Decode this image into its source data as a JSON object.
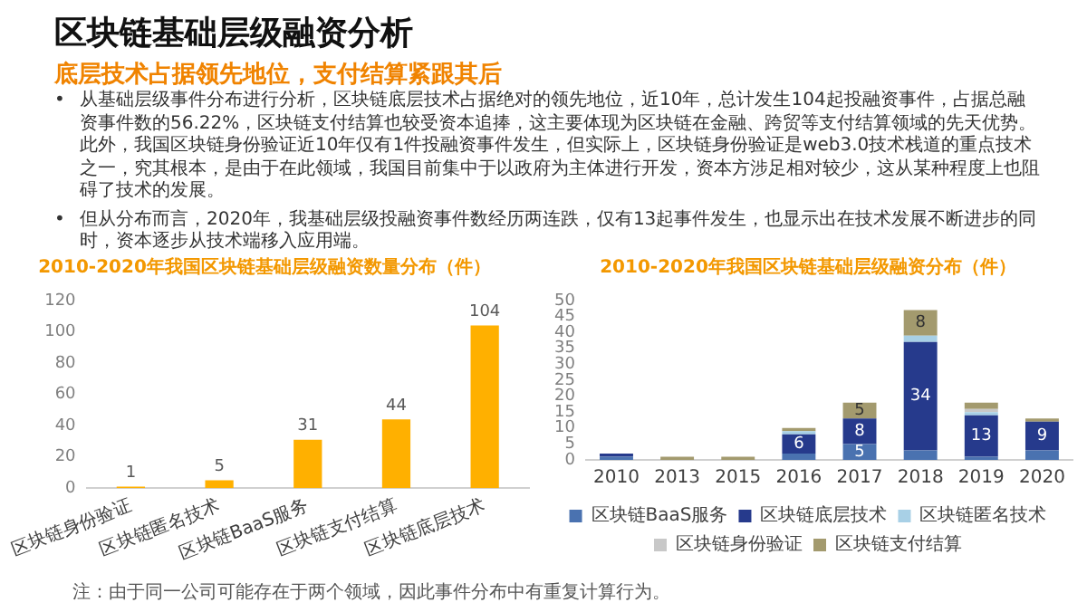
{
  "chart_data": [
    {
      "type": "other",
      "title": "区块链基础层级融资分析",
      "subtitle": "底层技术占据领先地位，支付结算紧跟其后",
      "annotations": [
        "• 从基础层级事件分布进行分析，区块链底层技术占据绝对的领先地位，近10年，总计发生104起投融资事件，占据总融资事件数的56.22%，区块链支付结算也较受资本追捧，这主要体现为区块链在金融、跨贸等支付结算领域的先天优势。此外，我国区块链身份验证近10年仅有1件投融资事件发生，但实际上，区块链身份验证是web3.0技术栈道的重点技术之一，究其根本，是由于在此领域，我国目前集中于以政府为主体进行开发，资本方涉足相对较少，这从某种程度上也阻碍了技术的发展。",
        "• 但从分布而言，2020年，我基础层级投融资事件数经历两连跌，仅有13起事件发生，也显示出在技术发展不断进步的同时，资本逐步从技术端移入应用端。"
      ]
    },
    {
      "type": "bar",
      "title": "2010-2020年我国区块链基础层级融资数量分布（件）",
      "categories": [
        "区块链身份验证",
        "区块链匿名技术",
        "区块链BaaS服务",
        "区块链支付结算",
        "区块链底层技术"
      ],
      "values": [
        1,
        5,
        31,
        44,
        104
      ],
      "color": "#ffb000",
      "ylim": [
        0,
        120
      ],
      "yticks": [
        0,
        20,
        40,
        60,
        80,
        100,
        120
      ],
      "data_labels": true,
      "annotations": [
        "注：由于同一公司可能存在于两个领域，因此事件分布中有重复计算行为。"
      ]
    },
    {
      "type": "bar",
      "title": "2010-2020年我国区块链基础层级融资分布（件）",
      "stacked": true,
      "categories": [
        "2010",
        "2013",
        "2015",
        "2016",
        "2017",
        "2018",
        "2019",
        "2020"
      ],
      "series": [
        {
          "name": "区块链BaaS服务",
          "color": "#4a72b0",
          "values": [
            1,
            null,
            null,
            2,
            5,
            3,
            1,
            3
          ],
          "value_labels": [
            null,
            null,
            null,
            null,
            "5",
            null,
            null,
            null
          ]
        },
        {
          "name": "区块链底层技术",
          "color": "#263a8c",
          "values": [
            1,
            null,
            null,
            6,
            8,
            34,
            13,
            9
          ],
          "value_labels": [
            null,
            null,
            null,
            "6",
            "8",
            "34",
            "13",
            "9"
          ]
        },
        {
          "name": "区块链匿名技术",
          "color": "#a8d0e6",
          "values": [
            null,
            null,
            null,
            1,
            null,
            2,
            1,
            null
          ]
        },
        {
          "name": "区块链身份验证",
          "color": "#c8c8c8",
          "values": [
            null,
            null,
            null,
            null,
            null,
            null,
            1,
            null
          ]
        },
        {
          "name": "区块链支付结算",
          "color": "#a39a6e",
          "values": [
            null,
            1,
            1,
            1,
            5,
            8,
            2,
            1
          ],
          "value_labels": [
            null,
            null,
            null,
            null,
            "5",
            "8",
            null,
            null
          ]
        }
      ],
      "ylim": [
        0,
        50
      ],
      "yticks": [
        0,
        5,
        10,
        15,
        20,
        25,
        30,
        35,
        40,
        45,
        50
      ],
      "legend": "bottom"
    }
  ]
}
